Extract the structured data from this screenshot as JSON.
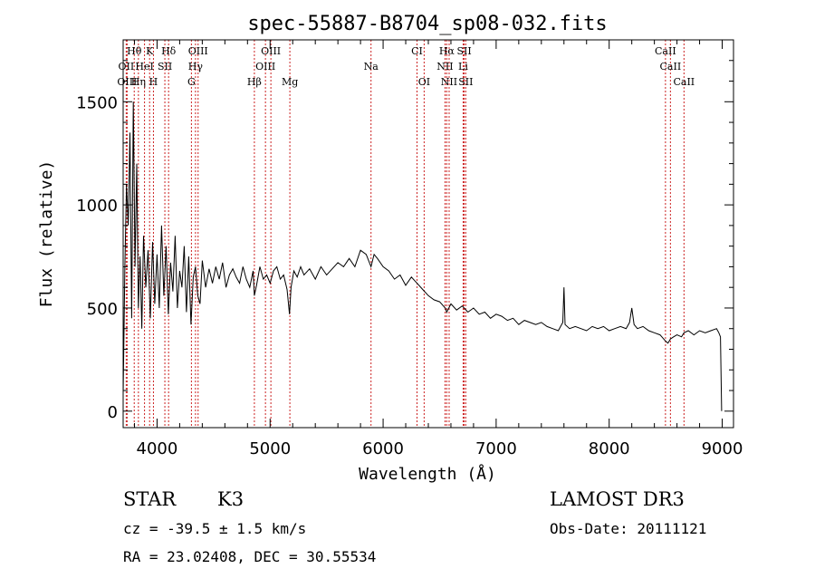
{
  "chart_data": {
    "type": "line",
    "title": "spec-55887-B8704_sp08-032.fits",
    "xlabel": "Wavelength (Å)",
    "ylabel": "Flux (relative)",
    "xlim": [
      3700,
      9100
    ],
    "ylim": [
      -80,
      1800
    ],
    "xticks": [
      4000,
      5000,
      6000,
      7000,
      8000,
      9000
    ],
    "xtick_labels": [
      "4000",
      "5000",
      "6000",
      "7000",
      "8000",
      "9000"
    ],
    "yticks": [
      0,
      500,
      1000,
      1500
    ],
    "ytick_labels": [
      "0",
      "500",
      "1000",
      "1500"
    ],
    "series": [
      {
        "name": "flux",
        "color": "#000000",
        "x": [
          3700,
          3715,
          3730,
          3745,
          3760,
          3775,
          3790,
          3805,
          3820,
          3835,
          3850,
          3865,
          3880,
          3900,
          3920,
          3940,
          3960,
          3980,
          4000,
          4020,
          4040,
          4060,
          4080,
          4100,
          4120,
          4140,
          4160,
          4180,
          4200,
          4220,
          4240,
          4260,
          4280,
          4300,
          4320,
          4340,
          4360,
          4380,
          4400,
          4430,
          4460,
          4490,
          4520,
          4550,
          4580,
          4610,
          4640,
          4670,
          4700,
          4730,
          4760,
          4790,
          4820,
          4850,
          4861,
          4880,
          4910,
          4940,
          4970,
          5000,
          5030,
          5060,
          5090,
          5120,
          5150,
          5172,
          5185,
          5210,
          5240,
          5270,
          5300,
          5350,
          5400,
          5450,
          5500,
          5550,
          5600,
          5650,
          5700,
          5750,
          5800,
          5850,
          5893,
          5920,
          5950,
          6000,
          6050,
          6100,
          6150,
          6200,
          6250,
          6300,
          6350,
          6400,
          6450,
          6500,
          6550,
          6563,
          6600,
          6650,
          6700,
          6750,
          6800,
          6850,
          6900,
          6950,
          7000,
          7050,
          7100,
          7150,
          7200,
          7250,
          7300,
          7350,
          7400,
          7450,
          7500,
          7550,
          7590,
          7600,
          7610,
          7650,
          7700,
          7750,
          7800,
          7850,
          7900,
          7950,
          8000,
          8050,
          8100,
          8150,
          8180,
          8200,
          8220,
          8250,
          8300,
          8350,
          8400,
          8450,
          8498,
          8520,
          8542,
          8570,
          8600,
          8640,
          8662,
          8700,
          8750,
          8800,
          8850,
          8900,
          8950,
          8970,
          8985,
          8995
        ],
        "values": [
          80,
          700,
          1100,
          900,
          1350,
          450,
          1500,
          700,
          1200,
          500,
          750,
          400,
          850,
          600,
          780,
          450,
          820,
          520,
          760,
          500,
          900,
          560,
          800,
          470,
          720,
          580,
          850,
          500,
          680,
          600,
          800,
          480,
          750,
          420,
          650,
          700,
          560,
          520,
          730,
          600,
          690,
          620,
          700,
          640,
          720,
          600,
          660,
          690,
          650,
          620,
          700,
          640,
          600,
          680,
          560,
          610,
          700,
          640,
          660,
          620,
          680,
          700,
          640,
          660,
          590,
          470,
          600,
          680,
          650,
          700,
          660,
          690,
          640,
          700,
          660,
          690,
          720,
          700,
          740,
          700,
          780,
          760,
          700,
          760,
          740,
          700,
          680,
          640,
          660,
          610,
          650,
          620,
          590,
          560,
          540,
          530,
          500,
          480,
          520,
          490,
          510,
          480,
          500,
          470,
          480,
          450,
          470,
          460,
          440,
          450,
          420,
          440,
          430,
          420,
          430,
          410,
          400,
          390,
          430,
          600,
          420,
          400,
          410,
          400,
          390,
          410,
          400,
          410,
          390,
          400,
          410,
          400,
          430,
          500,
          420,
          400,
          410,
          390,
          380,
          370,
          340,
          330,
          350,
          360,
          370,
          360,
          380,
          390,
          370,
          390,
          380,
          390,
          400,
          380,
          360,
          0
        ]
      }
    ],
    "annotations": [
      {
        "label": "Hθ",
        "x": 3798,
        "row": 1
      },
      {
        "label": "K",
        "x": 3934,
        "row": 1
      },
      {
        "label": "Hδ",
        "x": 4102,
        "row": 1
      },
      {
        "label": "OIII",
        "x": 4363,
        "row": 1
      },
      {
        "label": "OIII",
        "x": 5007,
        "row": 1
      },
      {
        "label": "CI",
        "x": 6300,
        "row": 1
      },
      {
        "label": "Hα",
        "x": 6563,
        "row": 1
      },
      {
        "label": "SII",
        "x": 6717,
        "row": 1
      },
      {
        "label": "CaII",
        "x": 8498,
        "row": 1
      },
      {
        "label": "OII",
        "x": 3727,
        "row": 2
      },
      {
        "label": "HeI",
        "x": 3889,
        "row": 2
      },
      {
        "label": "SII",
        "x": 4069,
        "row": 2
      },
      {
        "label": "Hγ",
        "x": 4340,
        "row": 2
      },
      {
        "label": "OIII",
        "x": 4959,
        "row": 2
      },
      {
        "label": "Na",
        "x": 5893,
        "row": 2
      },
      {
        "label": "NII",
        "x": 6548,
        "row": 2
      },
      {
        "label": "Li",
        "x": 6708,
        "row": 2
      },
      {
        "label": "CaII",
        "x": 8542,
        "row": 2
      },
      {
        "label": "OIII",
        "x": 3735,
        "row": 3
      },
      {
        "label": "Hη",
        "x": 3835,
        "row": 3
      },
      {
        "label": "H",
        "x": 3968,
        "row": 3
      },
      {
        "label": "G",
        "x": 4304,
        "row": 3
      },
      {
        "label": "Hβ",
        "x": 4861,
        "row": 3
      },
      {
        "label": "Mg",
        "x": 5175,
        "row": 3
      },
      {
        "label": "OI",
        "x": 6363,
        "row": 3
      },
      {
        "label": "NII",
        "x": 6584,
        "row": 3
      },
      {
        "label": "SII",
        "x": 6731,
        "row": 3
      },
      {
        "label": "CaII",
        "x": 8662,
        "row": 3
      }
    ]
  },
  "footer": {
    "object_class": "STAR",
    "subclass": "K3",
    "survey": "LAMOST DR3",
    "redshift_text": "cz = -39.5 ± 1.5 km/s",
    "obs_date_text": "Obs-Date: 20111121",
    "coords_text": "RA =  23.02408, DEC =  30.55534"
  },
  "colors": {
    "line_marker": "#cc2222",
    "spectrum": "#000000"
  }
}
